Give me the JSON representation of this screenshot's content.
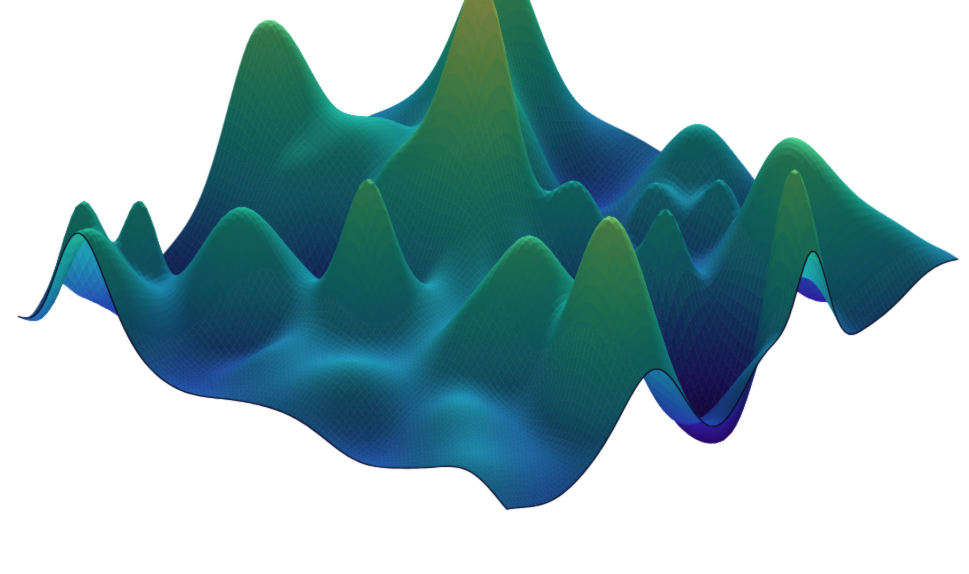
{
  "scene": {
    "background_color": "#ffffff",
    "content": "surface",
    "colormap": [
      "#22044e",
      "#2a1a8c",
      "#1f4a9e",
      "#1b8ea8",
      "#1fb39a",
      "#4fd087",
      "#9be070",
      "#e8ec7a"
    ],
    "edge_color": "#0a0420",
    "lighting": "shaded"
  }
}
